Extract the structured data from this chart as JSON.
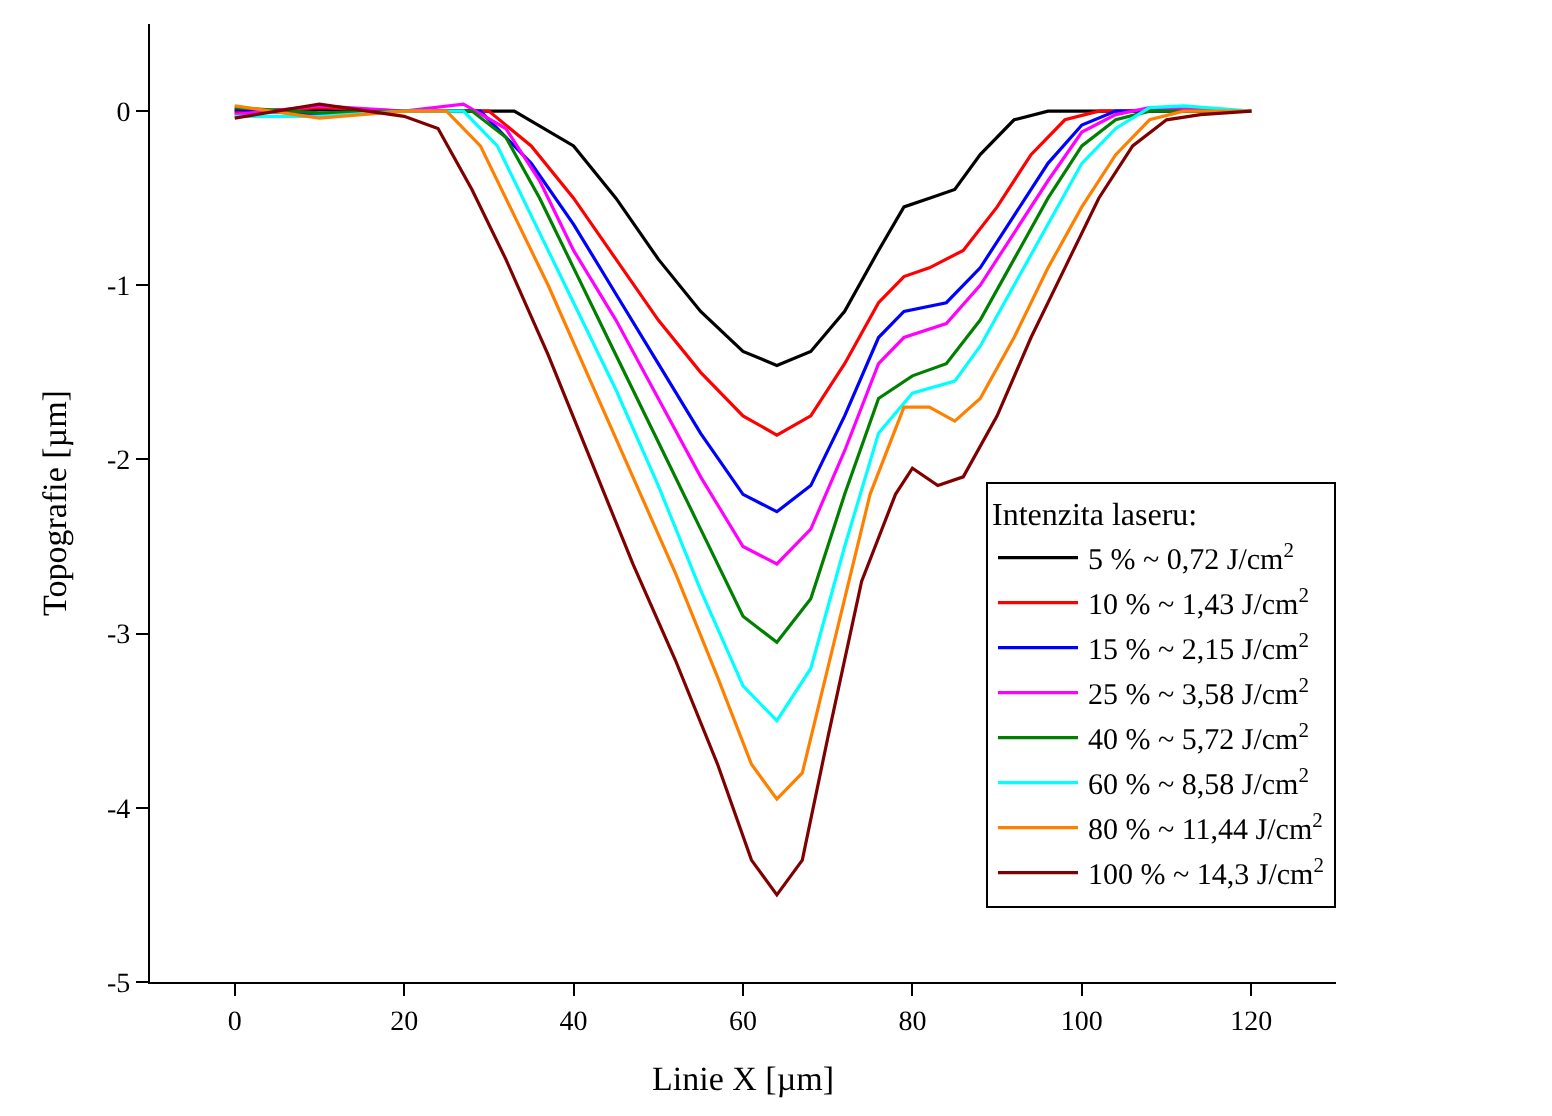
{
  "chart_data": {
    "type": "line",
    "xlabel": "Linie X [µm]",
    "ylabel": "Topografie [µm]",
    "legend_title": "Intenzita laseru:",
    "xlim": [
      -10,
      130
    ],
    "xticks": [
      0,
      20,
      40,
      60,
      80,
      100,
      120
    ],
    "ylim": [
      -5,
      0.5
    ],
    "yticks": [
      -5,
      -4,
      -3,
      -2,
      -1,
      0
    ],
    "grid": false,
    "legend": "right",
    "marker": "none",
    "line_style": "solid",
    "series": [
      {
        "name": "5 % ~ 0,72 J/cm$^{2}$",
        "color": "#000000",
        "x": [
          0,
          10,
          20,
          28,
          33,
          40,
          45,
          50,
          55,
          60,
          64,
          68,
          72,
          76,
          79,
          82,
          85,
          88,
          92,
          96,
          120
        ],
        "values": [
          0,
          0.01,
          0,
          0,
          0,
          -0.2,
          -0.5,
          -0.85,
          -1.15,
          -1.38,
          -1.46,
          -1.38,
          -1.15,
          -0.8,
          -0.55,
          -0.5,
          -0.45,
          -0.25,
          -0.05,
          0,
          0
        ]
      },
      {
        "name": "10 % ~ 1,43 J/cm$^{2}$",
        "color": "#ff0000",
        "x": [
          0,
          10,
          20,
          30,
          35,
          40,
          45,
          50,
          55,
          60,
          64,
          68,
          72,
          76,
          79,
          82,
          86,
          90,
          94,
          98,
          102,
          120
        ],
        "values": [
          -0.01,
          0.02,
          0,
          0,
          -0.2,
          -0.5,
          -0.85,
          -1.2,
          -1.5,
          -1.75,
          -1.86,
          -1.75,
          -1.45,
          -1.1,
          -0.95,
          -0.9,
          -0.8,
          -0.55,
          -0.25,
          -0.05,
          0,
          0
        ]
      },
      {
        "name": "15 % ~ 2,15 J/cm$^{2}$",
        "color": "#0000ff",
        "x": [
          0,
          10,
          20,
          29,
          35,
          40,
          45,
          50,
          55,
          60,
          64,
          68,
          72,
          76,
          79,
          84,
          88,
          92,
          96,
          100,
          104,
          120
        ],
        "values": [
          0.01,
          -0.02,
          0,
          0,
          -0.3,
          -0.65,
          -1.05,
          -1.45,
          -1.85,
          -2.2,
          -2.3,
          -2.15,
          -1.75,
          -1.3,
          -1.15,
          -1.1,
          -0.9,
          -0.6,
          -0.3,
          -0.08,
          0,
          0
        ]
      },
      {
        "name": "25 % ~ 3,58 J/cm$^{2}$",
        "color": "#ff00ff",
        "x": [
          0,
          10,
          20,
          27,
          32,
          36,
          40,
          45,
          50,
          55,
          60,
          64,
          68,
          72,
          76,
          79,
          84,
          88,
          92,
          96,
          100,
          104,
          108,
          120
        ],
        "values": [
          -0.02,
          0.03,
          0,
          0.04,
          -0.1,
          -0.4,
          -0.8,
          -1.2,
          -1.65,
          -2.1,
          -2.5,
          -2.6,
          -2.4,
          -1.95,
          -1.45,
          -1.3,
          -1.22,
          -1.0,
          -0.7,
          -0.4,
          -0.12,
          -0.02,
          0.02,
          0
        ]
      },
      {
        "name": "40 % ~ 5,72 J/cm$^{2}$",
        "color": "#008000",
        "x": [
          0,
          10,
          20,
          28,
          32,
          36,
          40,
          45,
          50,
          55,
          60,
          64,
          68,
          72,
          76,
          80,
          84,
          88,
          92,
          96,
          100,
          104,
          108,
          120
        ],
        "values": [
          0.02,
          -0.01,
          0,
          0,
          -0.15,
          -0.5,
          -0.9,
          -1.4,
          -1.9,
          -2.4,
          -2.9,
          -3.05,
          -2.8,
          -2.2,
          -1.65,
          -1.52,
          -1.45,
          -1.2,
          -0.85,
          -0.5,
          -0.2,
          -0.05,
          0,
          0
        ]
      },
      {
        "name": "60 % ~ 8,58 J/cm$^{2}$",
        "color": "#00ffff",
        "x": [
          0,
          10,
          20,
          27,
          31,
          35,
          40,
          45,
          50,
          55,
          60,
          64,
          68,
          72,
          76,
          80,
          85,
          88,
          92,
          96,
          100,
          104,
          108,
          112,
          120
        ],
        "values": [
          -0.03,
          -0.03,
          0,
          0,
          -0.2,
          -0.6,
          -1.1,
          -1.6,
          -2.15,
          -2.75,
          -3.3,
          -3.5,
          -3.2,
          -2.5,
          -1.85,
          -1.62,
          -1.55,
          -1.35,
          -1.0,
          -0.65,
          -0.3,
          -0.1,
          0.02,
          0.03,
          0
        ]
      },
      {
        "name": "80 % ~ 11,44 J/cm$^{2}$",
        "color": "#ff8000",
        "x": [
          0,
          10,
          20,
          25,
          29,
          33,
          37,
          42,
          47,
          52,
          57,
          61,
          64,
          67,
          71,
          75,
          79,
          82,
          85,
          88,
          92,
          96,
          100,
          104,
          108,
          112,
          120
        ],
        "values": [
          0.03,
          -0.04,
          0,
          0,
          -0.2,
          -0.6,
          -1.0,
          -1.55,
          -2.1,
          -2.65,
          -3.25,
          -3.75,
          -3.95,
          -3.8,
          -3.0,
          -2.2,
          -1.7,
          -1.7,
          -1.78,
          -1.65,
          -1.3,
          -0.9,
          -0.55,
          -0.25,
          -0.05,
          0,
          0
        ]
      },
      {
        "name": "100 % ~ 14,3 J/cm$^{2}$",
        "color": "#800000",
        "x": [
          0,
          10,
          20,
          24,
          28,
          32,
          37,
          42,
          47,
          52,
          57,
          61,
          64,
          67,
          70,
          74,
          78,
          80,
          83,
          86,
          90,
          94,
          98,
          102,
          106,
          110,
          114,
          120
        ],
        "values": [
          -0.04,
          0.04,
          -0.03,
          -0.1,
          -0.45,
          -0.85,
          -1.4,
          -2.0,
          -2.6,
          -3.15,
          -3.75,
          -4.3,
          -4.5,
          -4.3,
          -3.6,
          -2.7,
          -2.2,
          -2.05,
          -2.15,
          -2.1,
          -1.75,
          -1.3,
          -0.9,
          -0.5,
          -0.2,
          -0.05,
          -0.02,
          0
        ]
      }
    ]
  }
}
